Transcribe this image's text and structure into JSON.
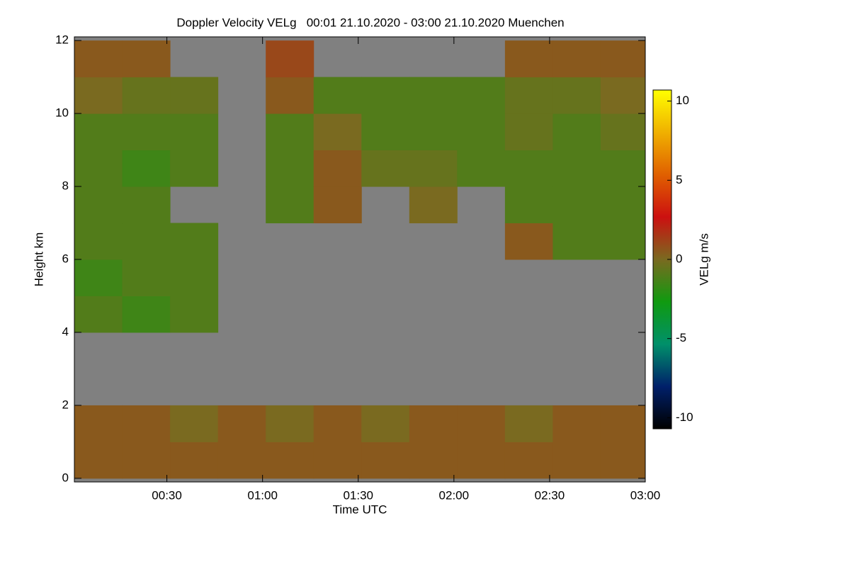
{
  "chart_data": {
    "type": "heatmap",
    "title": "Doppler Velocity VELg   00:01 21.10.2020 - 03:00 21.10.2020 Muenchen",
    "xlabel": "Time UTC",
    "ylabel": "Height km",
    "colorbar_label": "VELg m/s",
    "x_edges": [
      1,
      16,
      31,
      46,
      61,
      76,
      91,
      106,
      121,
      136,
      151,
      166,
      180
    ],
    "y_edges": [
      0,
      1,
      2,
      3,
      4,
      5,
      6,
      7,
      8,
      9,
      10,
      11,
      12
    ],
    "z": [
      [
        0.5,
        0.5,
        0.5,
        0.5,
        0.5,
        0.5,
        0.5,
        0.5,
        0.5,
        0.5,
        0.5,
        0.5
      ],
      [
        0.5,
        0.5,
        0,
        0.5,
        0,
        0.5,
        0,
        0.5,
        0.5,
        0,
        0.5,
        0.5
      ],
      [
        null,
        null,
        null,
        null,
        null,
        null,
        null,
        null,
        null,
        null,
        null,
        null
      ],
      [
        null,
        null,
        null,
        null,
        null,
        null,
        null,
        null,
        null,
        null,
        null,
        null
      ],
      [
        -1,
        -1.5,
        -1,
        null,
        null,
        null,
        null,
        null,
        null,
        null,
        null,
        null
      ],
      [
        -1.5,
        -1,
        -1,
        null,
        null,
        null,
        null,
        null,
        null,
        null,
        null,
        null
      ],
      [
        -1,
        -1,
        -1,
        null,
        null,
        null,
        null,
        null,
        null,
        0.5,
        -1,
        -1
      ],
      [
        -1,
        -1,
        null,
        null,
        -1,
        0.5,
        null,
        0,
        null,
        -1,
        -1,
        -1
      ],
      [
        -1,
        -1.5,
        -1,
        null,
        -1,
        0.5,
        -0.5,
        -0.5,
        -1,
        -1,
        -1,
        -1
      ],
      [
        -1,
        -1,
        -1,
        null,
        -1,
        0,
        -1,
        -1,
        -1,
        -0.5,
        -1,
        -0.5
      ],
      [
        0,
        -0.5,
        -0.5,
        null,
        0.5,
        -1,
        -1,
        -1,
        -1,
        -0.5,
        -0.5,
        0
      ],
      [
        0.5,
        0.5,
        null,
        null,
        1,
        null,
        null,
        null,
        null,
        0.5,
        0.5,
        0.5
      ]
    ],
    "xlim": [
      1,
      180
    ],
    "ylim": [
      -0.1,
      12.1
    ],
    "xticks": [
      {
        "value": 30,
        "label": "00:30"
      },
      {
        "value": 60,
        "label": "01:00"
      },
      {
        "value": 90,
        "label": "01:30"
      },
      {
        "value": 120,
        "label": "02:00"
      },
      {
        "value": 150,
        "label": "02:30"
      },
      {
        "value": 180,
        "label": "03:00"
      }
    ],
    "yticks": [
      0,
      2,
      4,
      6,
      8,
      10,
      12
    ],
    "clim": [
      -10.7,
      10.7
    ],
    "cticks": [
      -10,
      -5,
      0,
      5,
      10
    ],
    "colormap": [
      "#000000",
      "#00206a",
      "#00906a",
      "#109a10",
      "#7a6a20",
      "#cc1010",
      "#e06000",
      "#f0b000",
      "#ffff00"
    ],
    "missing_color": "#808080"
  }
}
